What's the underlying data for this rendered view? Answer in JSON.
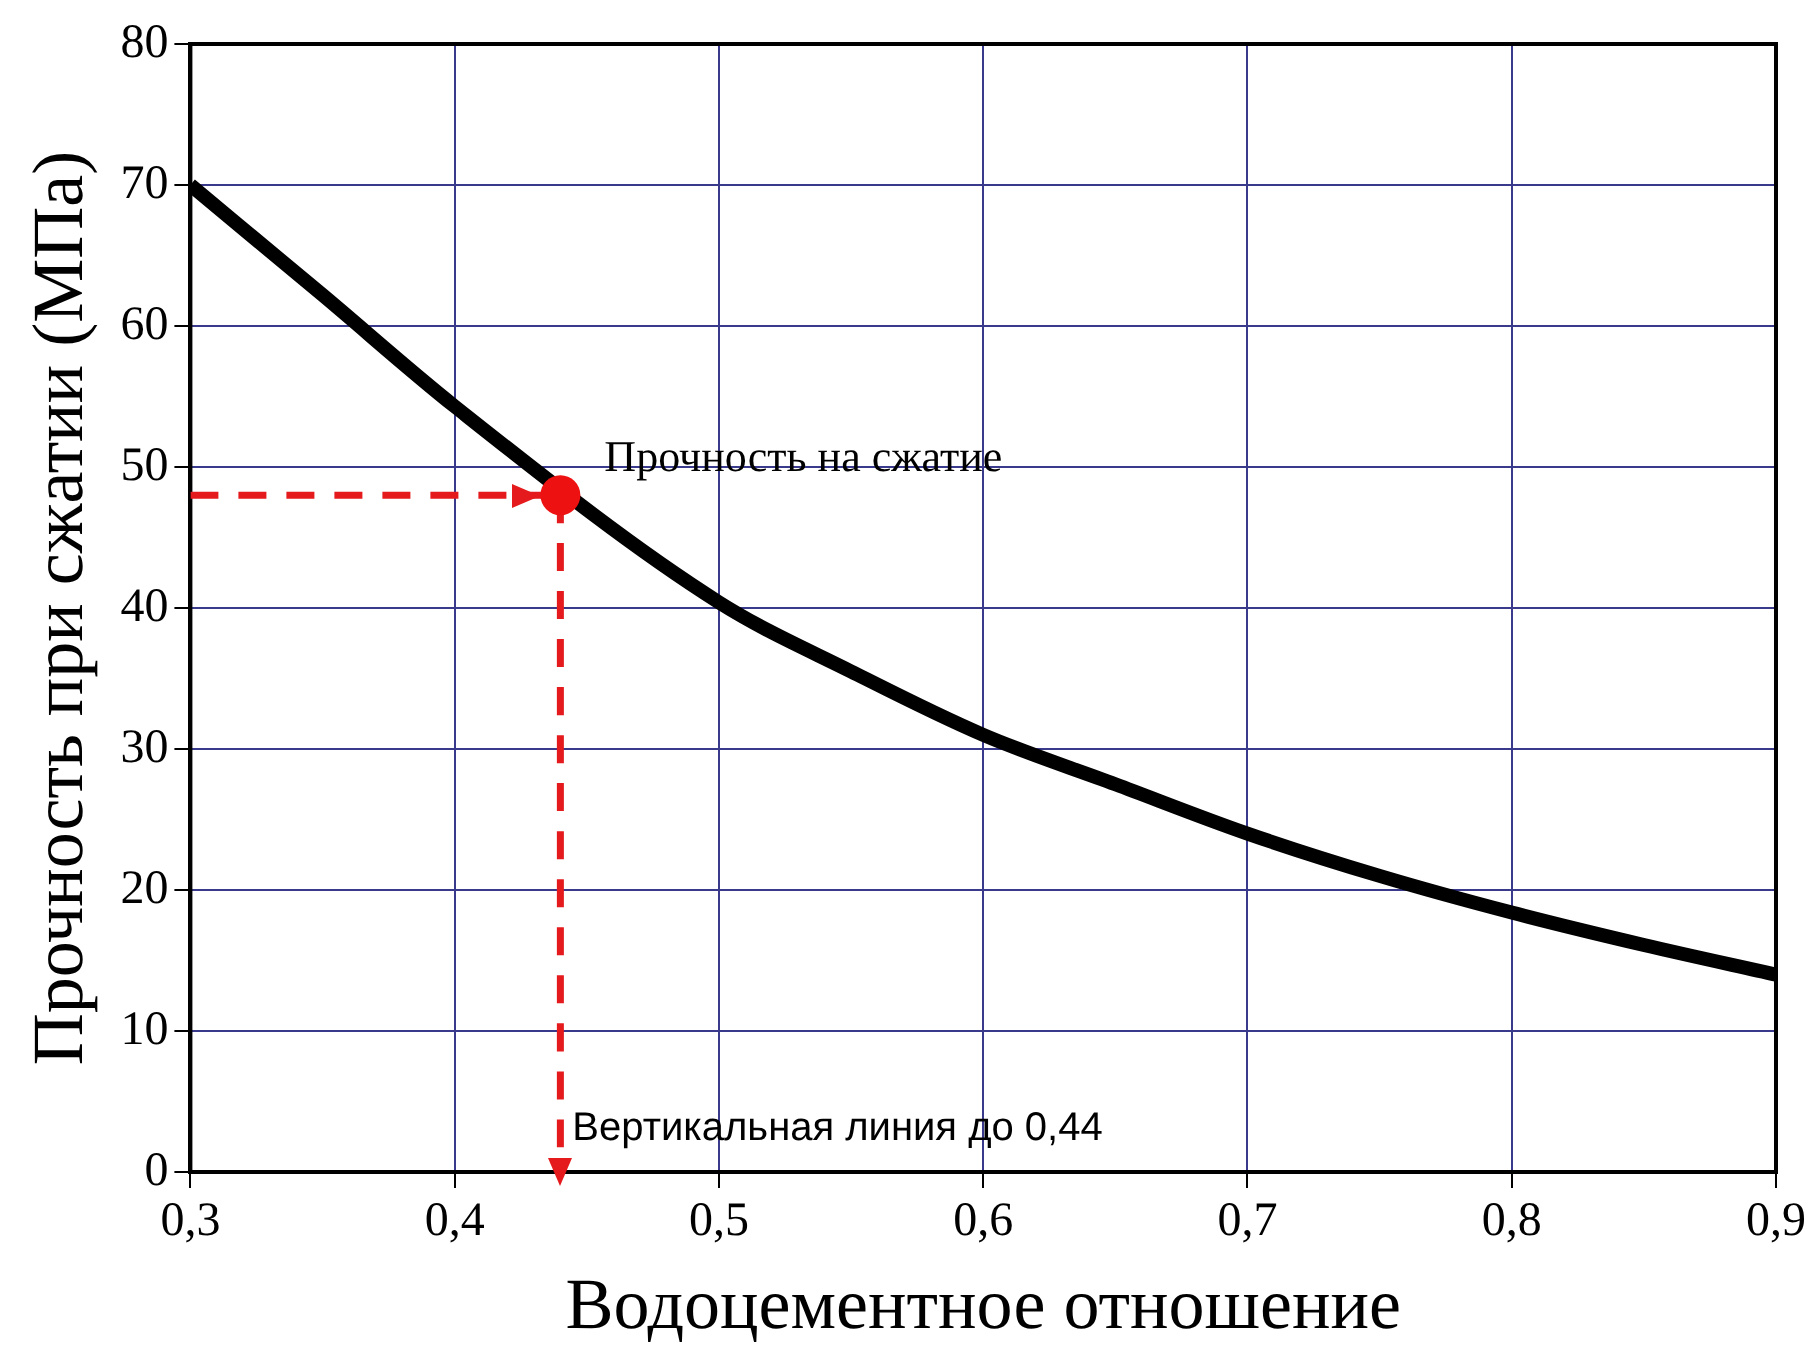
{
  "chart_data": {
    "type": "line",
    "xlabel": "Водоцементное отношение",
    "ylabel": "Прочность при сжатии (МПа)",
    "xlim": [
      0.3,
      0.9
    ],
    "xticks": [
      {
        "value": 0.3,
        "label": "0,3"
      },
      {
        "value": 0.4,
        "label": "0,4"
      },
      {
        "value": 0.5,
        "label": "0,5"
      },
      {
        "value": 0.6,
        "label": "0,6"
      },
      {
        "value": 0.7,
        "label": "0,7"
      },
      {
        "value": 0.8,
        "label": "0,8"
      },
      {
        "value": 0.9,
        "label": "0,9"
      }
    ],
    "ylim": [
      0,
      80
    ],
    "yticks": [
      0,
      10,
      20,
      30,
      40,
      50,
      60,
      70,
      80
    ],
    "grid": true,
    "legend": false,
    "series": [
      {
        "color": "#000000",
        "marker": "none",
        "x": [
          0.3,
          0.35,
          0.4,
          0.5,
          0.55,
          0.6,
          0.65,
          0.7,
          0.75,
          0.8,
          0.85,
          0.9
        ],
        "values": [
          70,
          62.2,
          54.3,
          40.4,
          35.5,
          31,
          27.5,
          24,
          21,
          18.4,
          16.1,
          14
        ]
      },
      {
        "color": "#e41a1c",
        "line_style": "dashed",
        "x": [
          0.3,
          0.44
        ],
        "values": [
          48,
          48
        ]
      },
      {
        "color": "#e41a1c",
        "line_style": "dashed",
        "x": [
          0.44,
          0.44
        ],
        "values": [
          48,
          0
        ]
      },
      {
        "type": "scatter",
        "color": "#ee1111",
        "marker": "circle",
        "x": [
          0.44
        ],
        "values": [
          48
        ]
      }
    ],
    "annotations": [
      {
        "text": "Прочность на сжатие",
        "x": 0.44,
        "y": 48
      },
      {
        "text": "Вертикальная линия до 0,44",
        "x": 0.44,
        "y": 0
      }
    ]
  }
}
